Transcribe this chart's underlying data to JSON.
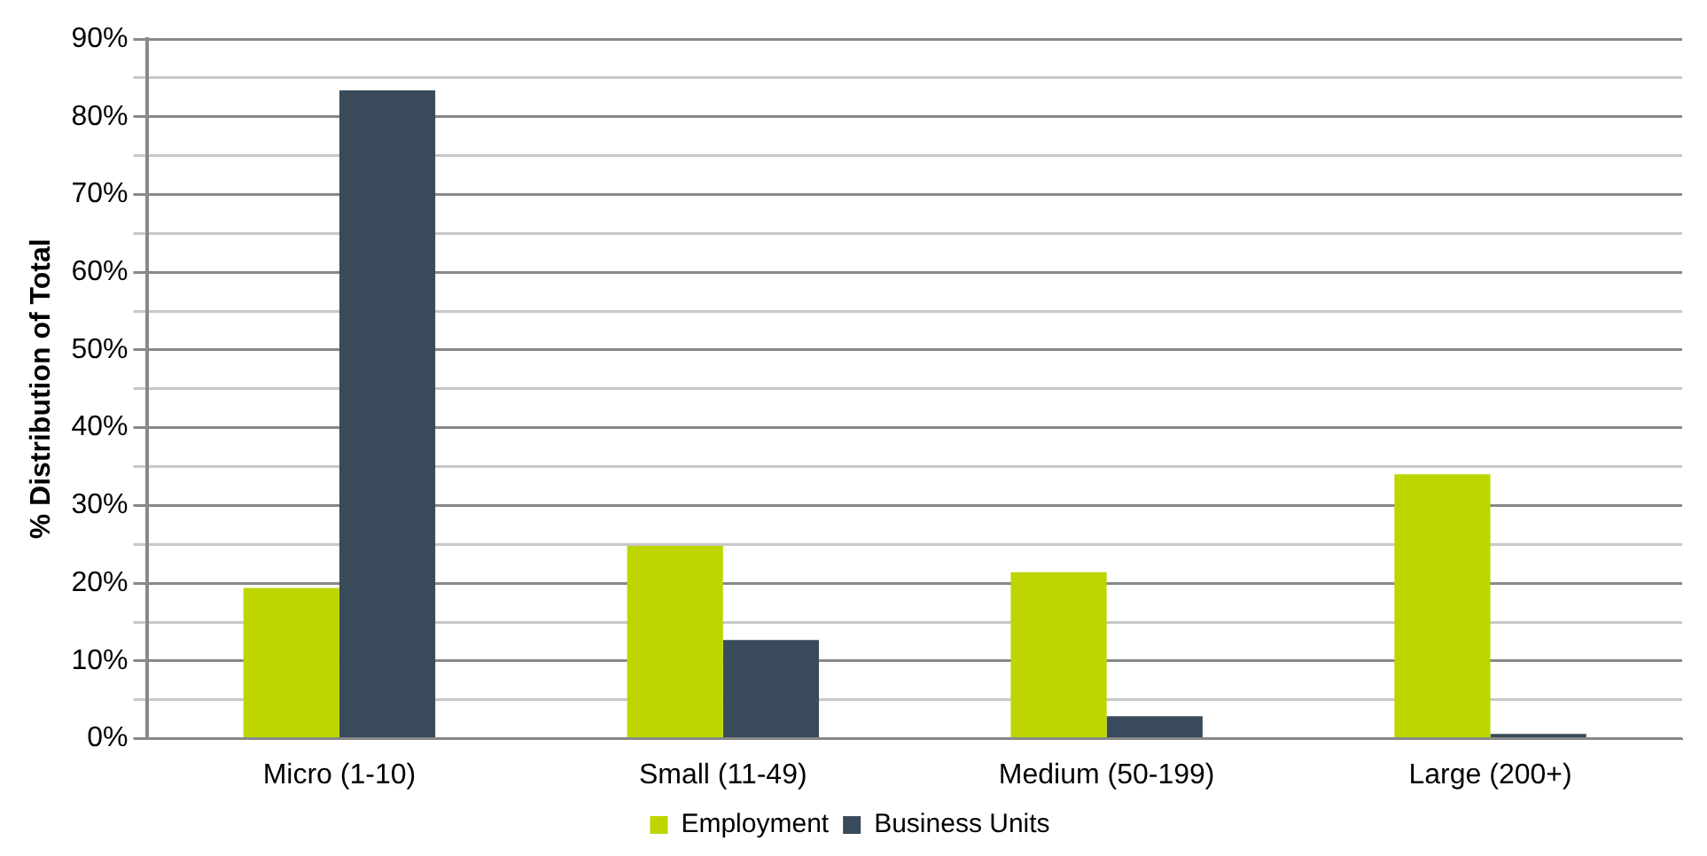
{
  "chart_data": {
    "type": "bar",
    "ylabel": "% Distribution of Total",
    "categories": [
      "Micro (1-10)",
      "Small (11-49)",
      "Medium (50-199)",
      "Large (200+)"
    ],
    "series": [
      {
        "name": "Employment",
        "color": "#bdd600",
        "values": [
          19.4,
          24.8,
          21.4,
          34.0
        ]
      },
      {
        "name": "Business Units",
        "color": "#394b5a",
        "values": [
          83.4,
          12.7,
          2.9,
          0.6
        ]
      }
    ],
    "ylim": [
      0,
      90
    ],
    "yticks": [
      {
        "value": 0,
        "label": "0%"
      },
      {
        "value": 5,
        "label": null
      },
      {
        "value": 10,
        "label": "10%"
      },
      {
        "value": 15,
        "label": null
      },
      {
        "value": 20,
        "label": "20%"
      },
      {
        "value": 25,
        "label": null
      },
      {
        "value": 30,
        "label": "30%"
      },
      {
        "value": 35,
        "label": null
      },
      {
        "value": 40,
        "label": "40%"
      },
      {
        "value": 45,
        "label": null
      },
      {
        "value": 50,
        "label": "50%"
      },
      {
        "value": 55,
        "label": null
      },
      {
        "value": 60,
        "label": "60%"
      },
      {
        "value": 65,
        "label": null
      },
      {
        "value": 70,
        "label": "70%"
      },
      {
        "value": 75,
        "label": null
      },
      {
        "value": 80,
        "label": "80%"
      },
      {
        "value": 85,
        "label": null
      },
      {
        "value": 90,
        "label": "90%"
      }
    ],
    "grid": "y",
    "legend": "bottom"
  }
}
